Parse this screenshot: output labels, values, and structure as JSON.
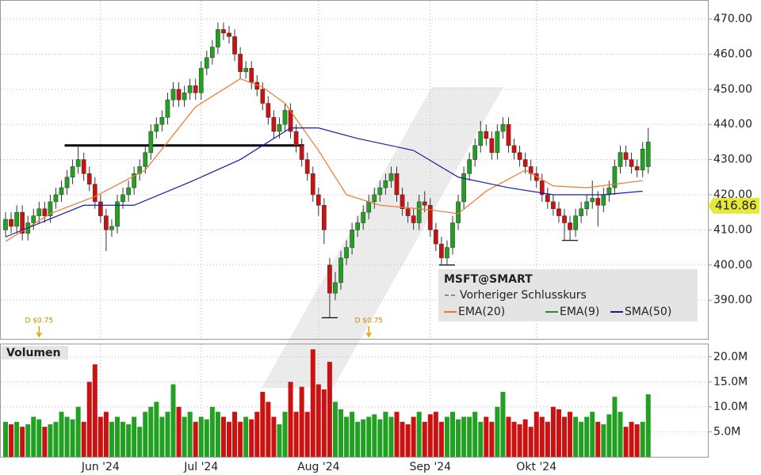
{
  "chart_data": {
    "type": "candlestick",
    "title": "MSFT@SMART",
    "prev_close_label": "Vorheriger Schlusskurs",
    "categories": [
      null,
      null,
      null,
      null,
      null,
      null,
      null,
      null,
      null,
      null,
      null,
      null,
      null,
      null,
      null,
      null,
      null,
      "Jun '24",
      null,
      null,
      null,
      null,
      null,
      null,
      null,
      null,
      null,
      null,
      null,
      null,
      null,
      null,
      null,
      null,
      null,
      "Jul '24",
      null,
      null,
      null,
      null,
      null,
      null,
      null,
      null,
      null,
      null,
      null,
      null,
      null,
      null,
      null,
      null,
      null,
      null,
      null,
      null,
      "Aug '24",
      null,
      null,
      null,
      null,
      null,
      null,
      null,
      null,
      null,
      null,
      null,
      null,
      null,
      null,
      null,
      null,
      null,
      null,
      null,
      "Sep '24",
      null,
      null,
      null,
      null,
      null,
      null,
      null,
      null,
      null,
      null,
      null,
      null,
      null,
      null,
      null,
      null,
      null,
      null,
      "Okt '24",
      null,
      null,
      null,
      null,
      null,
      null,
      null,
      null,
      null,
      null,
      null,
      null,
      null,
      null,
      null,
      null,
      null,
      null,
      null,
      null
    ],
    "open": [
      410,
      413,
      411,
      415,
      409,
      412,
      414,
      416,
      414,
      418,
      420,
      422,
      425,
      428,
      430,
      426,
      423,
      418,
      414,
      410,
      411,
      418,
      420,
      422,
      426,
      428,
      432,
      438,
      440,
      442,
      447,
      450,
      447,
      449,
      451,
      449,
      456,
      459,
      462,
      467,
      466,
      465,
      460,
      455,
      456,
      452,
      450,
      446,
      442,
      438,
      440,
      444,
      438,
      434,
      430,
      426,
      420,
      417,
      400,
      392,
      395,
      402,
      405,
      410,
      412,
      415,
      418,
      420,
      422,
      424,
      426,
      420,
      416,
      414,
      412,
      418,
      417,
      410,
      406,
      402,
      405,
      412,
      418,
      426,
      430,
      434,
      438,
      436,
      432,
      438,
      440,
      434,
      432,
      430,
      428,
      426,
      424,
      420,
      418,
      416,
      414,
      412,
      410,
      414,
      416,
      418,
      419,
      417,
      420,
      422,
      428,
      432,
      430,
      428,
      427,
      428
    ],
    "high": [
      415,
      415,
      417,
      417,
      414,
      416,
      418,
      418,
      420,
      422,
      424,
      427,
      430,
      434,
      432,
      428,
      425,
      420,
      416,
      413,
      420,
      422,
      424,
      428,
      430,
      434,
      440,
      442,
      444,
      449,
      452,
      452,
      451,
      453,
      453,
      458,
      461,
      464,
      469,
      469,
      468,
      467,
      462,
      458,
      458,
      454,
      452,
      448,
      444,
      442,
      446,
      446,
      440,
      436,
      432,
      428,
      422,
      419,
      402,
      398,
      404,
      407,
      412,
      414,
      417,
      420,
      422,
      424,
      426,
      428,
      428,
      422,
      418,
      416,
      420,
      421,
      419,
      412,
      408,
      407,
      414,
      420,
      428,
      432,
      436,
      441,
      440,
      438,
      440,
      442,
      442,
      436,
      434,
      432,
      430,
      428,
      426,
      422,
      420,
      418,
      416,
      414,
      416,
      418,
      420,
      424,
      421,
      422,
      424,
      430,
      434,
      434,
      432,
      430,
      435,
      439
    ],
    "low": [
      408,
      409,
      409,
      407,
      407,
      410,
      412,
      412,
      412,
      416,
      418,
      420,
      423,
      426,
      424,
      421,
      416,
      412,
      404,
      408,
      409,
      416,
      418,
      420,
      424,
      426,
      430,
      436,
      438,
      440,
      445,
      445,
      445,
      447,
      447,
      447,
      454,
      457,
      460,
      464,
      463,
      458,
      453,
      453,
      450,
      448,
      444,
      440,
      436,
      436,
      438,
      436,
      432,
      428,
      424,
      418,
      414,
      406,
      385,
      390,
      393,
      400,
      403,
      408,
      410,
      413,
      416,
      418,
      420,
      422,
      418,
      414,
      412,
      410,
      410,
      415,
      408,
      404,
      400,
      400,
      403,
      410,
      416,
      424,
      428,
      432,
      434,
      430,
      430,
      436,
      432,
      430,
      428,
      426,
      424,
      422,
      418,
      416,
      414,
      412,
      407,
      407,
      408,
      412,
      414,
      416,
      411,
      415,
      418,
      420,
      426,
      428,
      426,
      425,
      425,
      426
    ],
    "close": [
      413,
      411,
      415,
      409,
      412,
      414,
      416,
      414,
      418,
      420,
      422,
      425,
      428,
      430,
      426,
      423,
      418,
      414,
      410,
      411,
      418,
      420,
      422,
      426,
      428,
      432,
      438,
      440,
      442,
      447,
      450,
      447,
      449,
      451,
      449,
      456,
      459,
      462,
      467,
      466,
      465,
      460,
      455,
      456,
      452,
      450,
      446,
      442,
      438,
      440,
      444,
      438,
      434,
      430,
      426,
      420,
      417,
      410,
      392,
      395,
      402,
      405,
      410,
      412,
      415,
      418,
      420,
      422,
      424,
      426,
      420,
      416,
      414,
      412,
      418,
      417,
      410,
      406,
      402,
      405,
      412,
      418,
      426,
      430,
      434,
      438,
      436,
      432,
      438,
      440,
      434,
      432,
      430,
      428,
      426,
      424,
      420,
      418,
      416,
      414,
      412,
      410,
      414,
      416,
      418,
      419,
      417,
      420,
      422,
      428,
      432,
      430,
      428,
      427,
      433,
      435
    ],
    "up_color": "#22a022",
    "down_color": "#cc1111",
    "ylim": [
      379,
      475.4
    ],
    "yticks": [
      {
        "value": 390,
        "label": "390.00"
      },
      {
        "value": 400,
        "label": "400.00"
      },
      {
        "value": 410,
        "label": "410.00"
      },
      {
        "value": 420,
        "label": "420.00"
      },
      {
        "value": 430,
        "label": "430.00"
      },
      {
        "value": 440,
        "label": "440.00"
      },
      {
        "value": 450,
        "label": "450.00"
      },
      {
        "value": 460,
        "label": "460.00"
      },
      {
        "value": 470,
        "label": "470.00"
      }
    ],
    "grid": true,
    "last_price": 416.86,
    "lines": [
      {
        "name": "EMA(20)",
        "color": "#f07828",
        "x": [
          0,
          8,
          16,
          25,
          34,
          42,
          46,
          50,
          56,
          61,
          67,
          76,
          81,
          86,
          93,
          98,
          104,
          114
        ],
        "values": [
          406.7,
          414.6,
          419.5,
          427,
          445,
          453,
          450.6,
          446,
          432.6,
          420,
          417,
          415.7,
          414.6,
          421,
          427,
          422.5,
          422,
          424
        ]
      },
      {
        "name": "EMA(9)",
        "color": "#2a8a2a"
      },
      {
        "name": "SMA(50)",
        "color": "#1a1aa8",
        "x": [
          0,
          14,
          23,
          33,
          42,
          51,
          56,
          63,
          73,
          81,
          90,
          98,
          107,
          114
        ],
        "values": [
          408,
          417,
          417,
          423.6,
          430,
          439,
          439,
          436,
          432.6,
          425,
          422,
          420,
          420,
          421
        ]
      }
    ],
    "hlines": [
      {
        "value": 434,
        "x": [
          11,
          53
        ]
      },
      {
        "value": 385,
        "x": [
          57,
          59
        ]
      },
      {
        "value": 400,
        "x": [
          78,
          80
        ]
      },
      {
        "value": 407,
        "x": [
          100,
          102
        ]
      }
    ],
    "annotations": [
      {
        "text": "D $0.75",
        "x": 6
      },
      {
        "text": "D $0.75",
        "x": 65
      }
    ],
    "volume": {
      "title": "Volumen",
      "values": [
        7,
        6.5,
        7,
        6,
        6.5,
        8,
        7.5,
        6,
        6.5,
        7,
        9,
        8,
        7.5,
        10,
        7,
        15,
        18.5,
        8,
        9,
        7,
        8,
        7,
        6.5,
        8,
        6,
        9,
        10,
        11,
        8,
        9,
        14.5,
        10,
        8,
        9,
        7,
        8,
        7.5,
        10,
        9,
        8,
        7,
        9,
        7,
        8,
        7.5,
        9,
        13,
        11,
        8,
        6.5,
        9,
        15,
        9,
        14,
        9,
        21.5,
        14.5,
        13.5,
        19,
        11,
        9.5,
        8,
        9,
        7,
        7.5,
        8,
        8.5,
        7.5,
        9,
        8,
        9,
        7,
        6.5,
        8,
        9,
        7,
        8.5,
        9,
        7,
        8,
        9,
        7.5,
        8,
        8,
        9,
        7,
        8,
        7,
        10,
        13,
        8,
        7,
        6.5,
        7.5,
        6,
        9,
        8,
        7,
        10,
        9.5,
        8,
        9,
        8,
        7,
        8,
        9,
        7,
        6.5,
        8.5,
        12,
        9,
        6,
        7,
        6.5,
        7,
        12.5
      ],
      "ylim": [
        0,
        22.5
      ],
      "yticks": [
        {
          "value": 5,
          "label": "5.0M"
        },
        {
          "value": 10,
          "label": "10.0M"
        },
        {
          "value": 15,
          "label": "15.0M"
        },
        {
          "value": 20,
          "label": "20.0M"
        }
      ]
    }
  }
}
